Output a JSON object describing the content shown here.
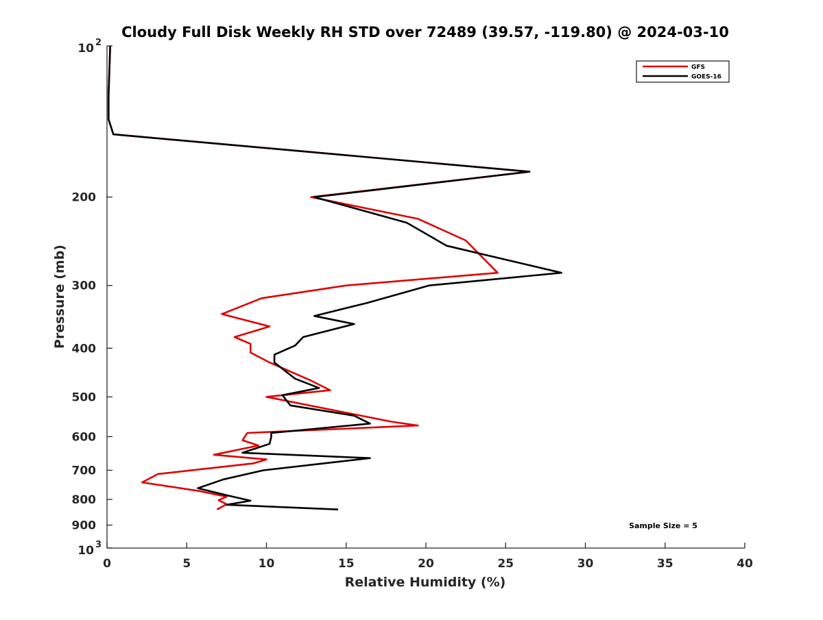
{
  "chart_data": {
    "type": "line",
    "title": "Cloudy Full Disk Weekly RH STD over 72489 (39.57, -119.80) @ 2024-03-10",
    "xlabel": "Relative Humidity (%)",
    "ylabel": "Pressure (mb)",
    "xlim": [
      0,
      40
    ],
    "ylim": [
      100,
      1000
    ],
    "yscale": "log",
    "y_reversed": true,
    "grid": false,
    "legend_position": "top-right",
    "x_ticks": [
      0,
      5,
      10,
      15,
      20,
      25,
      30,
      35,
      40
    ],
    "y_ticks": [
      {
        "value": 100,
        "base": "10",
        "exp": "2"
      },
      {
        "value": 200,
        "label": "200"
      },
      {
        "value": 300,
        "label": "300"
      },
      {
        "value": 400,
        "label": "400"
      },
      {
        "value": 500,
        "label": "500"
      },
      {
        "value": 600,
        "label": "600"
      },
      {
        "value": 700,
        "label": "700"
      },
      {
        "value": 800,
        "label": "800"
      },
      {
        "value": 900,
        "label": "900"
      },
      {
        "value": 1000,
        "base": "10",
        "exp": "3"
      }
    ],
    "annotation": "Sample Size = 5",
    "series": [
      {
        "name": "GFS",
        "color": "#e00000",
        "points": [
          [
            0.2,
            100
          ],
          [
            0.1,
            125
          ],
          [
            0.1,
            140
          ],
          [
            0.4,
            150
          ],
          [
            26.5,
            178
          ],
          [
            12.8,
            200
          ],
          [
            19.5,
            221
          ],
          [
            22.5,
            244
          ],
          [
            24.5,
            283
          ],
          [
            15.0,
            300
          ],
          [
            9.7,
            318
          ],
          [
            7.2,
            342
          ],
          [
            10.2,
            362
          ],
          [
            8.0,
            380
          ],
          [
            9.0,
            392
          ],
          [
            9.0,
            408
          ],
          [
            10.2,
            427
          ],
          [
            12.8,
            464
          ],
          [
            14.0,
            485
          ],
          [
            10.0,
            500
          ],
          [
            17.8,
            560
          ],
          [
            19.5,
            570
          ],
          [
            8.8,
            590
          ],
          [
            8.5,
            610
          ],
          [
            9.5,
            625
          ],
          [
            6.7,
            652
          ],
          [
            10.0,
            666
          ],
          [
            9.2,
            678
          ],
          [
            3.2,
            712
          ],
          [
            2.2,
            740
          ],
          [
            5.8,
            770
          ],
          [
            7.5,
            790
          ],
          [
            7.0,
            803
          ],
          [
            7.5,
            818
          ],
          [
            6.9,
            838
          ]
        ]
      },
      {
        "name": "GOES-16",
        "color": "#000000",
        "points": [
          [
            0.2,
            100
          ],
          [
            0.1,
            125
          ],
          [
            0.1,
            140
          ],
          [
            0.4,
            150
          ],
          [
            26.5,
            178
          ],
          [
            13.0,
            200
          ],
          [
            18.8,
            225
          ],
          [
            21.3,
            250
          ],
          [
            28.5,
            283
          ],
          [
            20.2,
            300
          ],
          [
            16.3,
            325
          ],
          [
            13.0,
            345
          ],
          [
            15.5,
            358
          ],
          [
            12.3,
            380
          ],
          [
            11.8,
            395
          ],
          [
            10.5,
            412
          ],
          [
            10.5,
            427
          ],
          [
            11.8,
            460
          ],
          [
            13.3,
            480
          ],
          [
            11.0,
            496
          ],
          [
            11.5,
            520
          ],
          [
            15.5,
            545
          ],
          [
            16.5,
            565
          ],
          [
            10.3,
            590
          ],
          [
            10.3,
            600
          ],
          [
            10.2,
            620
          ],
          [
            8.5,
            646
          ],
          [
            16.5,
            662
          ],
          [
            13.3,
            680
          ],
          [
            9.8,
            700
          ],
          [
            7.3,
            730
          ],
          [
            5.7,
            760
          ],
          [
            7.5,
            785
          ],
          [
            9.0,
            805
          ],
          [
            7.5,
            820
          ],
          [
            14.5,
            838
          ]
        ]
      }
    ]
  }
}
